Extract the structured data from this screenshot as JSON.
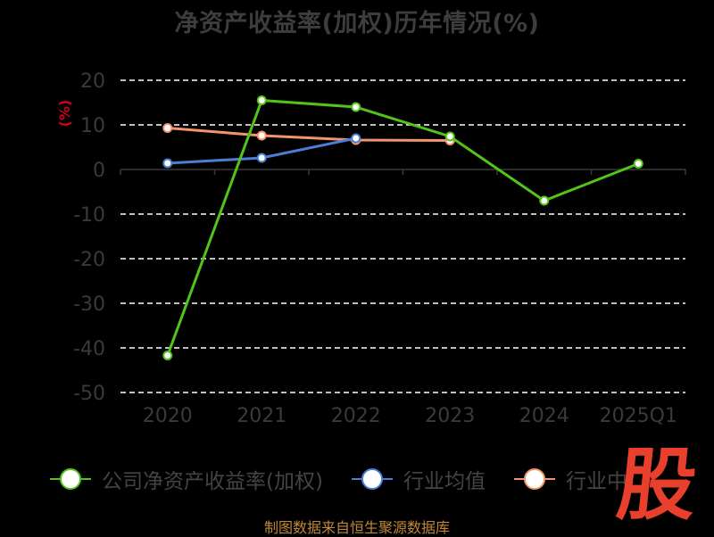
{
  "chart_data": {
    "type": "line",
    "title": "净资产收益率(加权)历年情况(%)",
    "ylabel": "(%)",
    "categories": [
      "2020",
      "2021",
      "2022",
      "2023",
      "2024",
      "2025Q1"
    ],
    "ylim": [
      -50,
      20
    ],
    "yticks": [
      20,
      10,
      0,
      -10,
      -20,
      -30,
      -40,
      -50
    ],
    "grid": "horizontal-dashed",
    "legend_position": "bottom",
    "series": [
      {
        "name": "公司净资产收益率(加权)",
        "color": "#52c41a",
        "values": [
          -41.7,
          15.5,
          14.0,
          7.4,
          -7.0,
          1.3
        ]
      },
      {
        "name": "行业均值",
        "color": "#4a7fd6",
        "values": [
          1.4,
          2.6,
          7.0,
          null,
          null,
          null
        ]
      },
      {
        "name": "行业中",
        "color": "#f3946a",
        "values": [
          9.3,
          7.6,
          6.6,
          6.5,
          null,
          null
        ]
      }
    ]
  },
  "watermark": "股",
  "source": "制图数据来自恒生聚源数据库"
}
